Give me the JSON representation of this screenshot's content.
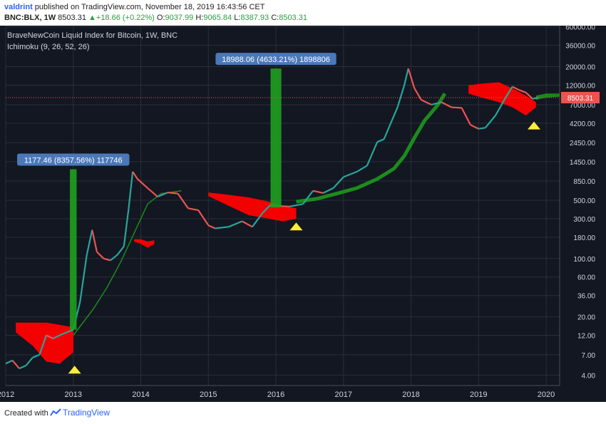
{
  "publish": {
    "user": "valdrint",
    "text": "published on TradingView.com, November 18, 2019 16:43:56 CET"
  },
  "ohlc": {
    "symbol": "BNC:BLX, 1W",
    "last": "8503.31",
    "arrow": "▲",
    "change": "+18.66 (+0.22%)",
    "o_label": "O:",
    "o": "9037.99",
    "h_label": "H:",
    "h": "9065.84",
    "l_label": "L:",
    "l": "8387.93",
    "c_label": "C:",
    "c": "8503.31"
  },
  "footer": {
    "created": "Created with",
    "brand": "TradingView"
  },
  "colors": {
    "background": "#131722",
    "up": "#26a69a",
    "down": "#ef5350",
    "cloud_bull": "#1b8c1b",
    "cloud_bear": "#ff0000",
    "highlight": "#1fa01f",
    "marker": "#ffeb3b",
    "label_bg": "#4a78b8"
  },
  "chart_data": {
    "type": "line",
    "title": "BraveNewCoin Liquid Index for Bitcoin, 1W, BNC",
    "indicator": "Ichimoku (9, 26, 52, 26)",
    "y_scale": "log",
    "ylim": [
      3.0,
      62000
    ],
    "xlim": [
      2012.0,
      2020.2
    ],
    "x_ticks": [
      2012,
      2013,
      2014,
      2015,
      2016,
      2017,
      2018,
      2019,
      2020
    ],
    "x_tick_labels": [
      "2012",
      "2013",
      "2014",
      "2015",
      "2016",
      "2017",
      "2018",
      "2019",
      "2020"
    ],
    "y_ticks": [
      4,
      7,
      12,
      20,
      36,
      60,
      100,
      180,
      300,
      500,
      850,
      1450,
      2450,
      4200,
      7000,
      12000,
      20000,
      36000,
      60000
    ],
    "y_tick_labels": [
      "4.00",
      "7.00",
      "12.00",
      "20.00",
      "36.00",
      "60.00",
      "100.00",
      "180.00",
      "300.00",
      "500.00",
      "850.00",
      "1450.00",
      "2450.00",
      "4200.00",
      "7000.00",
      "12000.00",
      "20000.00",
      "36000.00",
      "60000.00"
    ],
    "last_price": 8503.31,
    "last_price_label": "8503.31",
    "price_series": {
      "name": "BNC:BLX",
      "x": [
        2012.0,
        2012.1,
        2012.2,
        2012.3,
        2012.4,
        2012.5,
        2012.6,
        2012.7,
        2012.8,
        2012.9,
        2013.0,
        2013.1,
        2013.2,
        2013.28,
        2013.35,
        2013.45,
        2013.55,
        2013.65,
        2013.75,
        2013.82,
        2013.88,
        2013.95,
        2014.1,
        2014.25,
        2014.4,
        2014.55,
        2014.7,
        2014.85,
        2015.0,
        2015.1,
        2015.3,
        2015.5,
        2015.65,
        2015.8,
        2015.92,
        2016.0,
        2016.2,
        2016.4,
        2016.55,
        2016.7,
        2016.85,
        2017.0,
        2017.2,
        2017.35,
        2017.5,
        2017.6,
        2017.7,
        2017.8,
        2017.9,
        2017.96,
        2018.05,
        2018.15,
        2018.3,
        2018.45,
        2018.6,
        2018.75,
        2018.88,
        2019.0,
        2019.1,
        2019.25,
        2019.4,
        2019.5,
        2019.6,
        2019.7,
        2019.8,
        2019.88
      ],
      "y": [
        5.5,
        6.0,
        4.8,
        5.2,
        6.5,
        7.0,
        12.0,
        11.0,
        12.0,
        13.0,
        14.0,
        30.0,
        110.0,
        220.0,
        120.0,
        100.0,
        95.0,
        110.0,
        140.0,
        400.0,
        1100.0,
        900.0,
        700.0,
        550.0,
        620.0,
        600.0,
        400.0,
        380.0,
        250.0,
        230.0,
        240.0,
        280.0,
        240.0,
        350.0,
        440.0,
        430.0,
        420.0,
        450.0,
        650.0,
        610.0,
        700.0,
        950.0,
        1100.0,
        1300.0,
        2500.0,
        2700.0,
        4200.0,
        6500.0,
        12000.0,
        19000.0,
        11000.0,
        8000.0,
        7000.0,
        7500.0,
        6500.0,
        6400.0,
        4000.0,
        3600.0,
        3700.0,
        5200.0,
        8500.0,
        11500.0,
        10500.0,
        9800.0,
        8200.0,
        8500.0
      ]
    },
    "tenkan_line": {
      "x": [
        2013.0,
        2013.3,
        2013.5,
        2013.7,
        2013.9,
        2014.1,
        2014.3,
        2014.6
      ],
      "y": [
        12.0,
        25.0,
        45.0,
        90.0,
        200.0,
        450.0,
        600.0,
        650.0
      ]
    },
    "senkou_bullish": {
      "x": [
        2016.3,
        2016.6,
        2016.9,
        2017.2,
        2017.5,
        2017.75,
        2017.9,
        2018.05,
        2018.2,
        2018.4,
        2018.5
      ],
      "y": [
        480.0,
        520.0,
        600.0,
        700.0,
        900.0,
        1200.0,
        1700.0,
        2800.0,
        4500.0,
        7000.0,
        9500.0
      ]
    },
    "bear_cloud_2013": {
      "x": [
        2012.15,
        2012.4,
        2012.6,
        2012.8,
        2013.0
      ],
      "upper": [
        17.0,
        17.0,
        17.0,
        16.0,
        15.0
      ],
      "lower": [
        13.0,
        9.0,
        5.8,
        5.5,
        7.5
      ]
    },
    "bear_cloud_2014": {
      "x": [
        2013.9,
        2014.0,
        2014.1,
        2014.2
      ],
      "upper": [
        170.0,
        170.0,
        160.0,
        165.0
      ],
      "lower": [
        160.0,
        150.0,
        135.0,
        150.0
      ]
    },
    "bear_cloud_2016": {
      "x": [
        2015.0,
        2015.3,
        2015.6,
        2015.9,
        2016.1,
        2016.3
      ],
      "upper": [
        620.0,
        580.0,
        540.0,
        480.0,
        430.0,
        400.0
      ],
      "lower": [
        560.0,
        430.0,
        330.0,
        300.0,
        280.0,
        300.0
      ]
    },
    "bear_cloud_2019": {
      "x": [
        2018.85,
        2019.05,
        2019.3,
        2019.5,
        2019.7,
        2019.85
      ],
      "upper": [
        12000.0,
        12500.0,
        13000.0,
        11000.0,
        9000.0,
        7500.0
      ],
      "lower": [
        9500.0,
        8500.0,
        7500.0,
        6500.0,
        5200.0,
        6500.0
      ]
    },
    "bull_cloud_2020": {
      "x": [
        2019.85,
        2020.0,
        2020.2
      ],
      "upper": [
        9000.0,
        9500.0,
        9500.0
      ],
      "lower": [
        8000.0,
        8500.0,
        8700.0
      ]
    },
    "highlights": [
      {
        "x0": 2012.95,
        "x1": 2013.05,
        "y0": 14.0,
        "y1": 1177.46,
        "label": "1177.46 (8357.56%) 117746"
      },
      {
        "x0": 2015.92,
        "x1": 2016.08,
        "y0": 410.0,
        "y1": 18988.06,
        "label": "18988.06 (4633.21%) 1898806"
      }
    ],
    "markers": [
      {
        "x": 2013.02,
        "y": 4.6
      },
      {
        "x": 2016.3,
        "y": 240.0
      },
      {
        "x": 2019.82,
        "y": 3900.0
      }
    ]
  }
}
